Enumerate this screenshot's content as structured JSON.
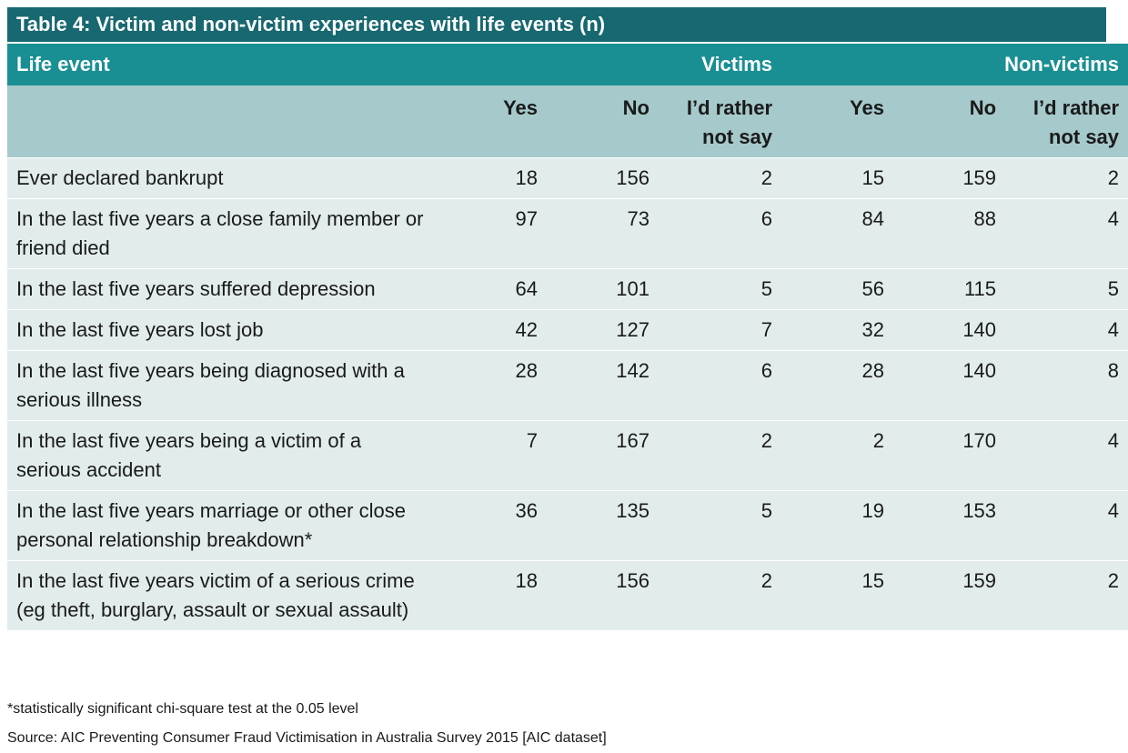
{
  "title": "Table 4: Victim and non-victim experiences with life events (n)",
  "header": {
    "life_event": "Life event",
    "victims": "Victims",
    "non_victims": "Non-victims",
    "sub": [
      "Yes",
      "No",
      "I’d rather not say",
      "Yes",
      "No",
      "I’d rather not say"
    ]
  },
  "rows": [
    {
      "label": "Ever declared bankrupt",
      "values": [
        "18",
        "156",
        "2",
        "15",
        "159",
        "2"
      ]
    },
    {
      "label": "In the last five years a close family member or friend died",
      "values": [
        "97",
        "73",
        "6",
        "84",
        "88",
        "4"
      ]
    },
    {
      "label": "In the last five years suffered depression",
      "values": [
        "64",
        "101",
        "5",
        "56",
        "115",
        "5"
      ]
    },
    {
      "label": "In the last five years lost job",
      "values": [
        "42",
        "127",
        "7",
        "32",
        "140",
        "4"
      ]
    },
    {
      "label": "In the last five years being diagnosed with a serious illness",
      "values": [
        "28",
        "142",
        "6",
        "28",
        "140",
        "8"
      ]
    },
    {
      "label": "In the last five years being a victim of a serious accident",
      "values": [
        "7",
        "167",
        "2",
        "2",
        "170",
        "4"
      ]
    },
    {
      "label": "In the last five years marriage or other close personal relationship breakdown*",
      "values": [
        "36",
        "135",
        "5",
        "19",
        "153",
        "4"
      ]
    },
    {
      "label": "In the last five years victim of a serious crime (eg theft, burglary, assault or sexual assault)",
      "values": [
        "18",
        "156",
        "2",
        "15",
        "159",
        "2"
      ]
    }
  ],
  "footnote": "*statistically significant chi-square test at the 0.05 level",
  "source": "Source: AIC Preventing Consumer Fraud Victimisation in Australia Survey 2015 [AIC dataset]"
}
